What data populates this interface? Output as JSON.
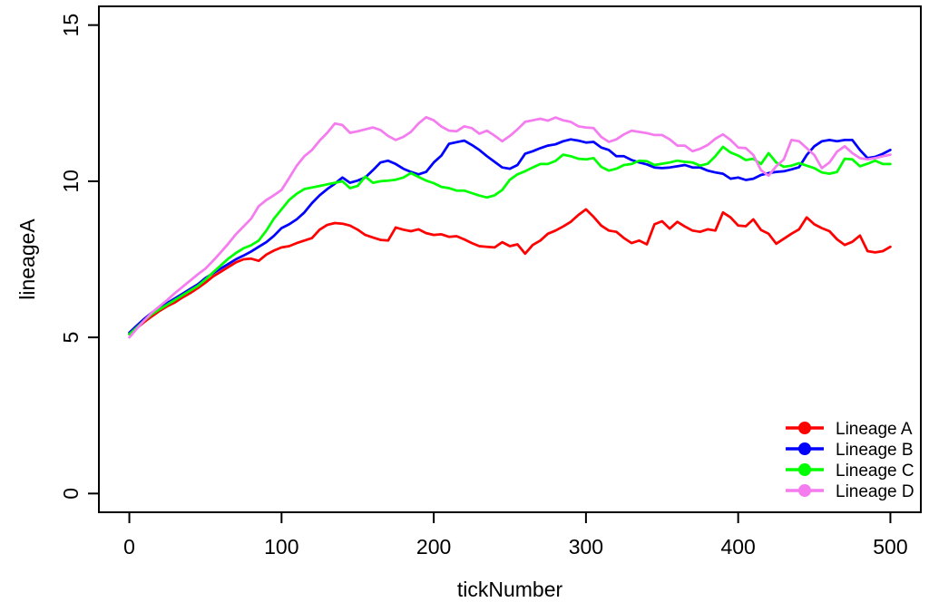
{
  "figure": {
    "background": "#ffffff",
    "axis_color": "#000000"
  },
  "chart_data": {
    "type": "line",
    "title": "",
    "xlabel": "tickNumber",
    "ylabel": "lineageA",
    "xlim": [
      -20,
      520
    ],
    "ylim": [
      -0.6,
      15.6
    ],
    "x_ticks": [
      0,
      100,
      200,
      300,
      400,
      500
    ],
    "y_ticks": [
      0,
      5,
      10,
      15
    ],
    "grid": false,
    "legend_position": "bottom-right",
    "x_start": 0,
    "x_step": 5,
    "series": [
      {
        "name": "Lineage A",
        "color": "#ff0000",
        "values": [
          5.1,
          5.3,
          5.5,
          5.68,
          5.85,
          6.0,
          6.12,
          6.28,
          6.42,
          6.58,
          6.75,
          6.95,
          7.1,
          7.25,
          7.4,
          7.5,
          7.52,
          7.45,
          7.65,
          7.78,
          7.88,
          7.92,
          8.02,
          8.1,
          8.18,
          8.45,
          8.6,
          8.66,
          8.64,
          8.58,
          8.45,
          8.28,
          8.2,
          8.12,
          8.1,
          8.52,
          8.45,
          8.4,
          8.46,
          8.34,
          8.28,
          8.3,
          8.22,
          8.24,
          8.14,
          8.02,
          7.92,
          7.9,
          7.88,
          8.05,
          7.92,
          7.98,
          7.68,
          7.96,
          8.1,
          8.32,
          8.42,
          8.55,
          8.7,
          8.92,
          9.1,
          8.86,
          8.58,
          8.42,
          8.38,
          8.18,
          8.02,
          8.1,
          7.98,
          8.62,
          8.72,
          8.48,
          8.7,
          8.55,
          8.42,
          8.38,
          8.46,
          8.42,
          9.0,
          8.84,
          8.58,
          8.56,
          8.78,
          8.44,
          8.32,
          8.0,
          8.16,
          8.32,
          8.46,
          8.84,
          8.62,
          8.5,
          8.4,
          8.14,
          7.96,
          8.06,
          8.26,
          7.76,
          7.72,
          7.76,
          7.9
        ]
      },
      {
        "name": "Lineage B",
        "color": "#0000ff",
        "values": [
          5.15,
          5.38,
          5.6,
          5.8,
          5.95,
          6.1,
          6.25,
          6.4,
          6.55,
          6.7,
          6.9,
          7.05,
          7.2,
          7.35,
          7.5,
          7.62,
          7.75,
          7.9,
          8.05,
          8.25,
          8.5,
          8.62,
          8.78,
          9.0,
          9.3,
          9.55,
          9.75,
          9.92,
          10.12,
          9.95,
          10.02,
          10.12,
          10.35,
          10.6,
          10.66,
          10.55,
          10.4,
          10.3,
          10.22,
          10.3,
          10.6,
          10.82,
          11.2,
          11.25,
          11.3,
          11.16,
          11.0,
          10.8,
          10.62,
          10.44,
          10.4,
          10.52,
          10.88,
          10.96,
          11.06,
          11.14,
          11.18,
          11.28,
          11.34,
          11.3,
          11.24,
          11.26,
          11.08,
          11.0,
          10.8,
          10.8,
          10.68,
          10.6,
          10.54,
          10.44,
          10.42,
          10.44,
          10.48,
          10.52,
          10.44,
          10.44,
          10.34,
          10.28,
          10.24,
          10.08,
          10.12,
          10.04,
          10.08,
          10.2,
          10.26,
          10.3,
          10.32,
          10.38,
          10.45,
          10.84,
          11.12,
          11.28,
          11.32,
          11.28,
          11.32,
          11.32,
          11.0,
          10.74,
          10.78,
          10.88,
          11.0
        ]
      },
      {
        "name": "Lineage C",
        "color": "#00ff00",
        "values": [
          5.1,
          5.32,
          5.55,
          5.75,
          5.9,
          6.05,
          6.2,
          6.35,
          6.5,
          6.65,
          6.85,
          7.08,
          7.3,
          7.52,
          7.7,
          7.85,
          7.95,
          8.1,
          8.42,
          8.8,
          9.1,
          9.4,
          9.6,
          9.75,
          9.8,
          9.85,
          9.9,
          9.95,
          10.0,
          9.78,
          9.85,
          10.15,
          9.95,
          10.0,
          10.02,
          10.05,
          10.12,
          10.26,
          10.14,
          10.02,
          9.94,
          9.82,
          9.78,
          9.7,
          9.7,
          9.62,
          9.54,
          9.48,
          9.55,
          9.72,
          10.05,
          10.22,
          10.32,
          10.44,
          10.55,
          10.55,
          10.65,
          10.85,
          10.8,
          10.72,
          10.7,
          10.74,
          10.46,
          10.34,
          10.4,
          10.52,
          10.55,
          10.66,
          10.64,
          10.52,
          10.56,
          10.6,
          10.66,
          10.62,
          10.6,
          10.5,
          10.56,
          10.8,
          11.1,
          10.92,
          10.82,
          10.68,
          10.72,
          10.55,
          10.9,
          10.6,
          10.46,
          10.5,
          10.58,
          10.5,
          10.42,
          10.28,
          10.24,
          10.3,
          10.72,
          10.7,
          10.48,
          10.56,
          10.66,
          10.55,
          10.55
        ]
      },
      {
        "name": "Lineage D",
        "color": "#f57cef",
        "values": [
          5.0,
          5.28,
          5.55,
          5.8,
          6.0,
          6.2,
          6.42,
          6.62,
          6.82,
          7.02,
          7.2,
          7.45,
          7.72,
          8.0,
          8.3,
          8.55,
          8.8,
          9.2,
          9.4,
          9.55,
          9.72,
          10.1,
          10.5,
          10.8,
          11.0,
          11.3,
          11.55,
          11.85,
          11.8,
          11.55,
          11.6,
          11.66,
          11.72,
          11.64,
          11.45,
          11.32,
          11.42,
          11.58,
          11.85,
          12.05,
          11.95,
          11.75,
          11.62,
          11.6,
          11.76,
          11.7,
          11.52,
          11.62,
          11.46,
          11.28,
          11.45,
          11.66,
          11.9,
          11.95,
          12.0,
          11.94,
          12.04,
          11.95,
          11.9,
          11.76,
          11.72,
          11.7,
          11.42,
          11.26,
          11.34,
          11.5,
          11.62,
          11.58,
          11.54,
          11.48,
          11.48,
          11.34,
          11.14,
          11.14,
          10.96,
          11.04,
          11.16,
          11.36,
          11.5,
          11.32,
          11.08,
          11.06,
          10.84,
          10.35,
          10.18,
          10.48,
          10.7,
          11.32,
          11.28,
          11.06,
          10.84,
          10.42,
          10.6,
          10.95,
          11.12,
          10.9,
          10.74,
          10.7,
          10.74,
          10.8,
          10.85
        ]
      }
    ]
  }
}
